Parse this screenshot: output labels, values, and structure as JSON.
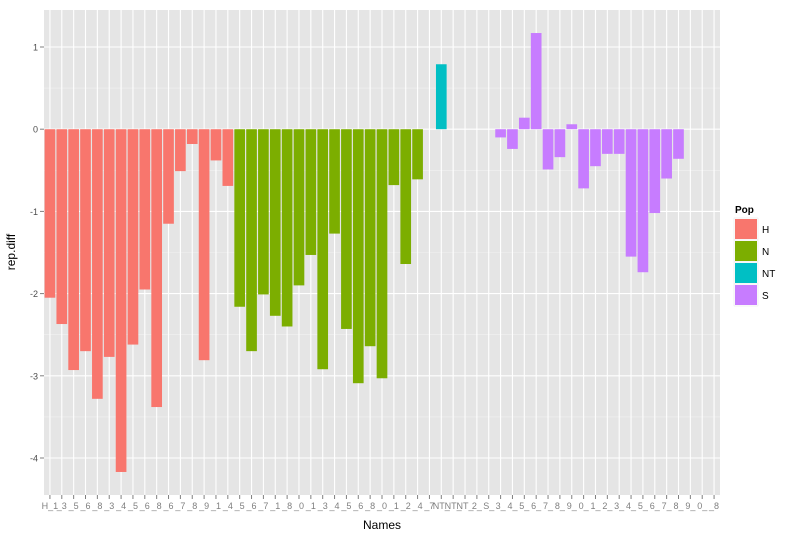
{
  "chart_data": {
    "type": "bar",
    "xlabel": "Names",
    "ylabel": "rep.diff",
    "ylim": [
      -4.45,
      1.45
    ],
    "yticks": [
      1,
      0,
      -1,
      -2,
      -3,
      -4
    ],
    "grid": true,
    "legend_position": "right",
    "legend_title": "Pop",
    "categories": [
      "H_1",
      "H_2",
      "H_3",
      "H_4",
      "H_5",
      "H_6",
      "H_7",
      "H_8",
      "H_9",
      "H_10",
      "H_11",
      "H_12",
      "H_13",
      "H_14",
      "H_15",
      "H_16",
      "N_1",
      "N_2",
      "N_3",
      "N_4",
      "N_5",
      "N_6",
      "N_7",
      "N_8",
      "N_9",
      "N_10",
      "N_11",
      "N_12",
      "N_13",
      "N_14",
      "N_15",
      "N_16",
      "N_17",
      "NT_1",
      "NT_2",
      "NT_3",
      "S_1",
      "S_2",
      "S_3",
      "S_4",
      "S_5",
      "S_6",
      "S_7",
      "S_8",
      "S_9",
      "S_10",
      "S_11",
      "S_12",
      "S_13",
      "S_14",
      "S_15",
      "S_16",
      "S_17",
      "S_18",
      "S_19",
      "S_20",
      "S_21"
    ],
    "tick_labels": [
      "H_1",
      "_3",
      "_5",
      "_6",
      "_8",
      "_3",
      "_4",
      "_5",
      "_6",
      "_8",
      "_6",
      "_7",
      "_8",
      "_9",
      "_1",
      "_4",
      "_5",
      "_6",
      "_7",
      "_1",
      "_8",
      "_0",
      "_1",
      "_3",
      "_4",
      "_5",
      "_6",
      "_8",
      "_0",
      "_1",
      "_2",
      "_4",
      "_7",
      "NT_",
      "NT_",
      "NT_",
      "2_",
      "S_",
      "3_",
      "4_",
      "5_",
      "6_",
      "7_",
      "8_",
      "9_",
      "0_",
      "1_",
      "2_",
      "3_",
      "4_",
      "5_",
      "6_",
      "7_",
      "8_",
      "9_",
      "0_",
      "_8"
    ],
    "values": [
      -2.05,
      -2.37,
      -2.93,
      -2.7,
      -3.28,
      -2.77,
      -4.17,
      -2.62,
      -1.95,
      -3.38,
      -1.15,
      -0.51,
      -0.18,
      -2.81,
      -0.38,
      -0.69,
      -2.16,
      -2.7,
      -2.01,
      -2.27,
      -2.4,
      -1.9,
      -1.53,
      -2.92,
      -1.27,
      -2.43,
      -3.09,
      -2.64,
      -3.03,
      -0.68,
      -1.64,
      -0.61,
      0.0,
      0.79,
      0.0,
      0.0,
      0.0,
      0.0,
      -0.1,
      -0.24,
      0.14,
      1.17,
      -0.49,
      -0.34,
      0.06,
      -0.72,
      -0.45,
      -0.3,
      -0.3,
      -1.55,
      -1.74,
      -1.02,
      -0.6,
      -0.36,
      0.0,
      0.0,
      0.0
    ],
    "groups": [
      "H",
      "H",
      "H",
      "H",
      "H",
      "H",
      "H",
      "H",
      "H",
      "H",
      "H",
      "H",
      "H",
      "H",
      "H",
      "H",
      "N",
      "N",
      "N",
      "N",
      "N",
      "N",
      "N",
      "N",
      "N",
      "N",
      "N",
      "N",
      "N",
      "N",
      "N",
      "N",
      "N",
      "NT",
      "NT",
      "NT",
      "S",
      "S",
      "S",
      "S",
      "S",
      "S",
      "S",
      "S",
      "S",
      "S",
      "S",
      "S",
      "S",
      "S",
      "S",
      "S",
      "S",
      "S",
      "S",
      "S",
      "S"
    ],
    "legend": [
      {
        "label": "H",
        "color": "#F8766D"
      },
      {
        "label": "N",
        "color": "#7CAE00"
      },
      {
        "label": "NT",
        "color": "#00BFC4"
      },
      {
        "label": "S",
        "color": "#C77CFF"
      }
    ]
  }
}
